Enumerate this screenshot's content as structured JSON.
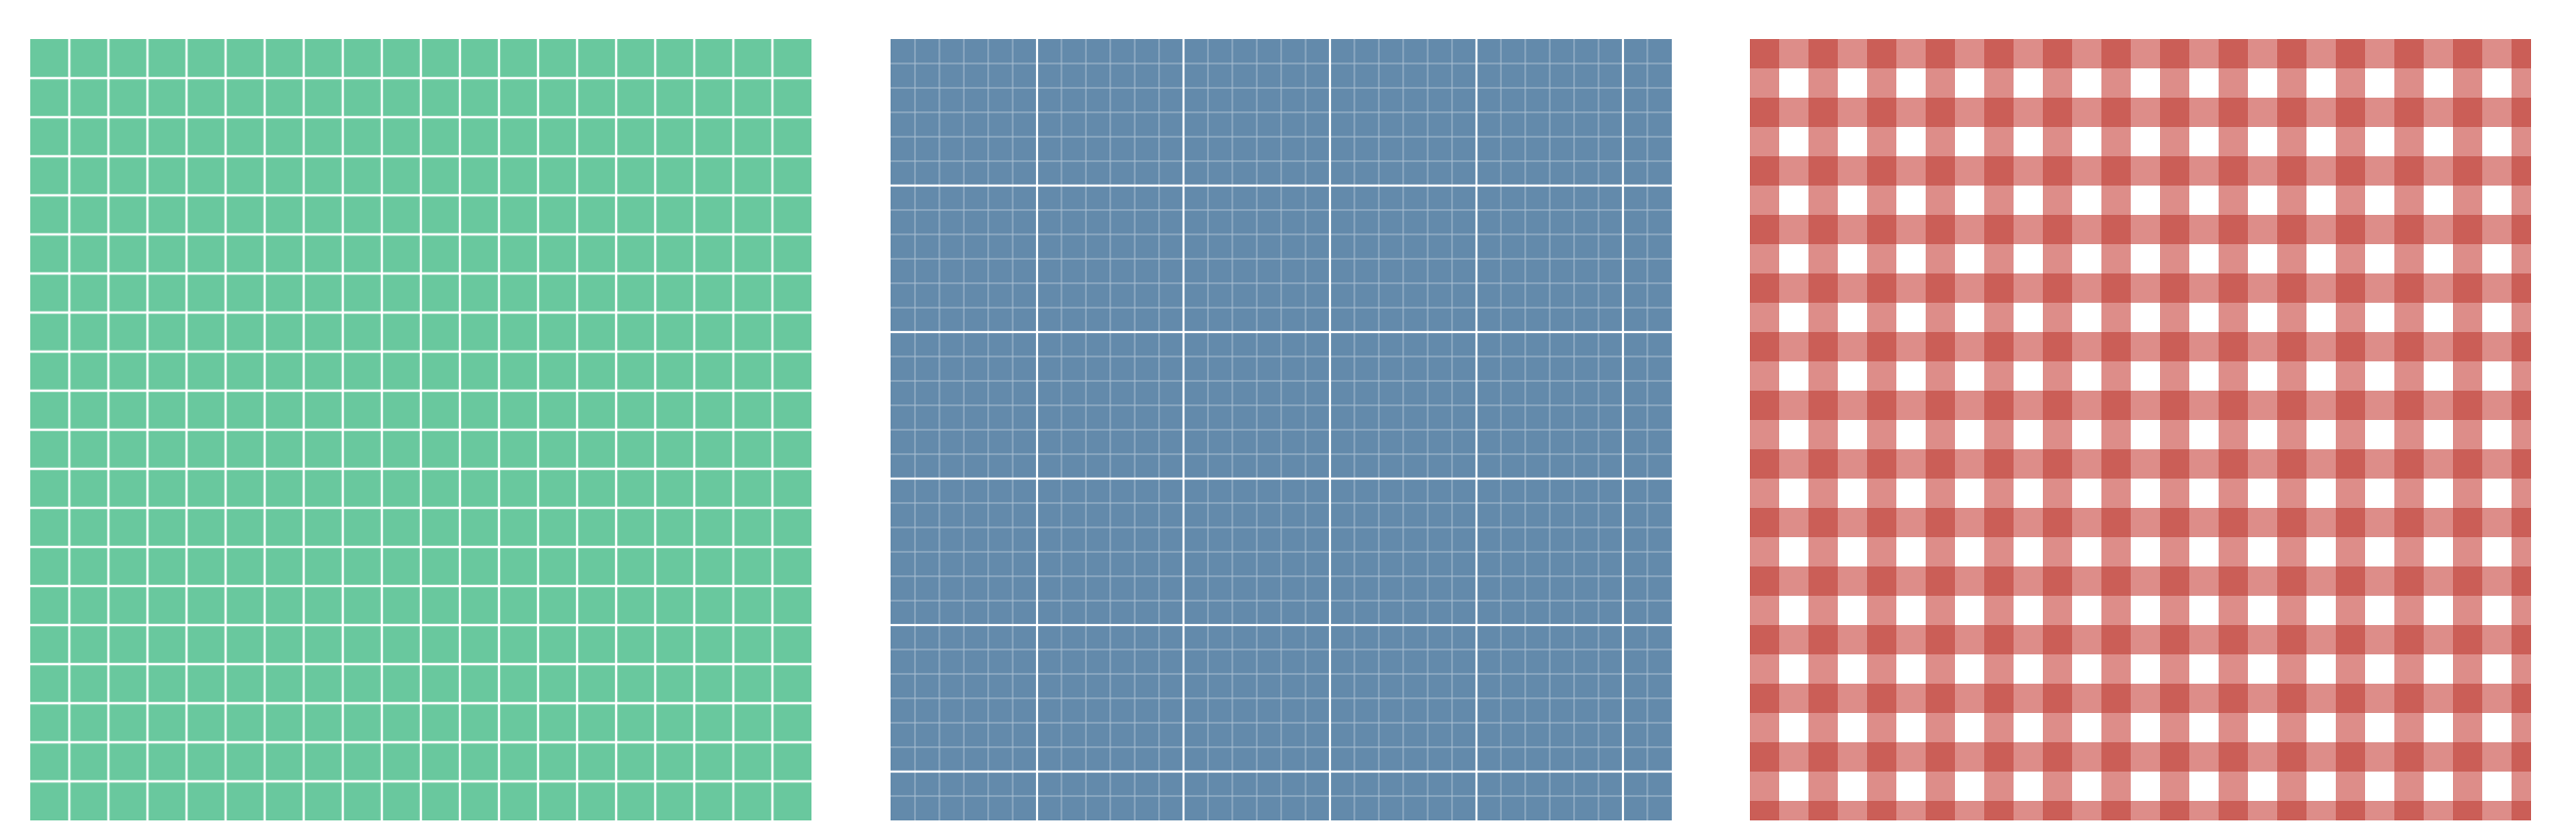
{
  "panels": [
    {
      "id": "grid",
      "pattern": "square-grid",
      "fill_color": "#69c89e",
      "line_color": "#ffffff",
      "cells_per_side": 20
    },
    {
      "id": "graph-paper",
      "pattern": "graph-paper",
      "fill_color": "#638aab",
      "minor_line_color": "#a9bfd2",
      "major_line_color": "#ffffff",
      "major_divisions": 5,
      "minor_per_major": 6
    },
    {
      "id": "gingham",
      "pattern": "gingham",
      "dark_color": "#cb5e57",
      "light_color": "#dd8d89",
      "white_color": "#ffffff",
      "stripes_per_side": 26
    }
  ]
}
